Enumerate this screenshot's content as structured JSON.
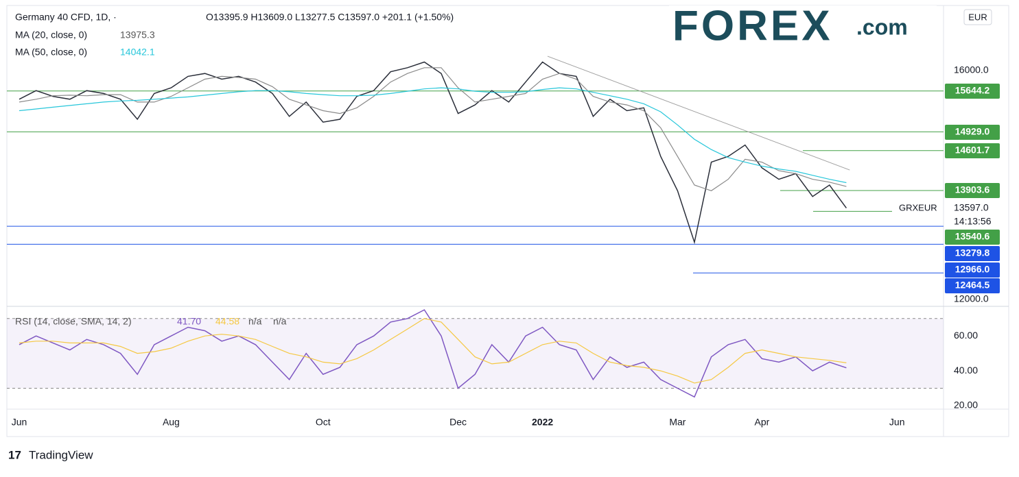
{
  "header": {
    "title": "Germany 40 CFD, 1D, ·",
    "ohlc": "O13395.9 H13609.0 L13277.5 C13597.0 +201.1 (+1.50%)",
    "ma20_value": "13975.3",
    "ma50_value": "14042.1",
    "currency": "EUR",
    "price_label": "13597.0",
    "countdown": "14:13:56"
  },
  "logo": {
    "text": "FOREX",
    "suffix": ".com"
  },
  "footer": "TradingView",
  "chart_data": [
    {
      "type": "line",
      "categories": [
        "Jun",
        null,
        null,
        null,
        null,
        null,
        null,
        null,
        null,
        "Aug",
        null,
        null,
        null,
        null,
        null,
        null,
        null,
        null,
        "Oct",
        null,
        null,
        null,
        null,
        null,
        null,
        null,
        "Dec",
        null,
        null,
        null,
        null,
        "2022",
        null,
        null,
        null,
        null,
        null,
        null,
        null,
        "Mar",
        null,
        null,
        null,
        null,
        "Apr",
        null,
        null,
        null,
        null,
        null,
        null,
        null,
        "Jun",
        null,
        null
      ],
      "series": [
        {
          "name": "GRXEUR",
          "color": "#2a2e39",
          "values": [
            15500,
            15650,
            15550,
            15500,
            15650,
            15600,
            15500,
            15150,
            15600,
            15700,
            15900,
            15950,
            15850,
            15900,
            15800,
            15600,
            15200,
            15450,
            15100,
            15150,
            15550,
            15650,
            15980,
            16050,
            16150,
            15950,
            15250,
            15400,
            15650,
            15450,
            15800,
            16150,
            15950,
            15900,
            15200,
            15500,
            15300,
            15350,
            14500,
            13900,
            13000,
            14400,
            14500,
            14700,
            14300,
            14100,
            14200,
            13800,
            14000,
            13597,
            null,
            null,
            null,
            null,
            null
          ]
        },
        {
          "name": "MA (20, close, 0)",
          "color": "#8a8a8a",
          "values": [
            15450,
            15500,
            15560,
            15570,
            15560,
            15580,
            15580,
            15450,
            15450,
            15550,
            15700,
            15850,
            15900,
            15880,
            15850,
            15720,
            15500,
            15400,
            15300,
            15250,
            15350,
            15550,
            15800,
            15950,
            16050,
            16050,
            15700,
            15450,
            15500,
            15550,
            15600,
            15850,
            15950,
            15850,
            15550,
            15450,
            15400,
            15300,
            15000,
            14500,
            14000,
            13900,
            14100,
            14450,
            14400,
            14250,
            14200,
            14100,
            14050,
            13975.3,
            null,
            null,
            null,
            null,
            null
          ]
        },
        {
          "name": "MA (50, close, 0)",
          "color": "#26c6da",
          "values": [
            15300,
            15330,
            15360,
            15390,
            15420,
            15450,
            15470,
            15480,
            15500,
            15520,
            15540,
            15570,
            15600,
            15630,
            15650,
            15650,
            15630,
            15600,
            15580,
            15560,
            15560,
            15570,
            15600,
            15640,
            15680,
            15700,
            15680,
            15640,
            15620,
            15620,
            15630,
            15670,
            15700,
            15680,
            15620,
            15560,
            15500,
            15420,
            15280,
            15050,
            14800,
            14620,
            14480,
            14400,
            14330,
            14280,
            14240,
            14170,
            14100,
            14042.1,
            null,
            null,
            null,
            null,
            null
          ]
        }
      ],
      "trendline": {
        "values": [
          16251,
          14263
        ],
        "color": "#9e9e9e"
      },
      "levels": [
        {
          "value": 15644.2,
          "label": "15644.2",
          "color": "#43a047"
        },
        {
          "value": 14929.0,
          "label": "14929.0",
          "color": "#43a047"
        },
        {
          "value": 14601.7,
          "label": "14601.7",
          "color": "#43a047"
        },
        {
          "value": 13903.6,
          "label": "13903.6",
          "color": "#43a047"
        },
        {
          "value": 13540.6,
          "label": "13540.6",
          "color": "#43a047"
        },
        {
          "value": 13279.8,
          "label": "13279.8",
          "color": "#1e53e5"
        },
        {
          "value": 12966.0,
          "label": "12966.0",
          "color": "#1e53e5"
        },
        {
          "value": 12464.5,
          "label": "12464.5",
          "color": "#1e53e5"
        }
      ],
      "ylim": [
        11880,
        17114
      ],
      "yticks": [
        {
          "value": 16000,
          "label": "16000.0"
        },
        {
          "value": 12000,
          "label": "12000.0"
        }
      ]
    },
    {
      "type": "line",
      "title": "RSI (14, close, SMA, 14, 2)",
      "value_texts": [
        "41.70",
        "44.58",
        "n/a",
        "n/a"
      ],
      "series": [
        {
          "name": "RSI",
          "color": "#7e57c2",
          "values": [
            55,
            60,
            56,
            52,
            58,
            55,
            50,
            38,
            55,
            60,
            65,
            63,
            57,
            60,
            55,
            45,
            35,
            50,
            38,
            42,
            55,
            60,
            68,
            70,
            75,
            60,
            30,
            38,
            55,
            45,
            60,
            65,
            55,
            52,
            35,
            48,
            42,
            45,
            35,
            30,
            25,
            48,
            55,
            58,
            47,
            45,
            48,
            40,
            45,
            41.7,
            null,
            null,
            null,
            null,
            null
          ]
        },
        {
          "name": "SMA",
          "color": "#f5c842",
          "values": [
            56,
            57,
            57,
            56,
            56,
            56,
            54,
            50,
            51,
            53,
            57,
            60,
            61,
            60,
            58,
            54,
            50,
            48,
            45,
            44,
            47,
            52,
            58,
            64,
            70,
            68,
            58,
            48,
            44,
            45,
            50,
            55,
            57,
            56,
            50,
            45,
            43,
            42,
            40,
            37,
            33,
            35,
            42,
            50,
            52,
            50,
            48,
            47,
            46,
            44.58,
            null,
            null,
            null,
            null,
            null
          ]
        }
      ],
      "bands": [
        70,
        30
      ],
      "ylim": [
        18,
        77
      ],
      "yticks": [
        {
          "value": 60,
          "label": "60.00"
        },
        {
          "value": 40,
          "label": "40.00"
        },
        {
          "value": 20,
          "label": "20.00"
        }
      ]
    }
  ]
}
